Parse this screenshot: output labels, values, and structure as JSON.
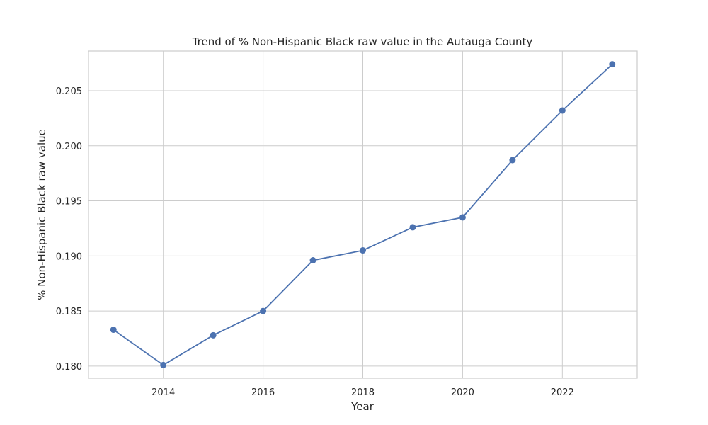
{
  "chart_data": {
    "type": "line",
    "title": "Trend of % Non-Hispanic Black raw value in the Autauga County",
    "xlabel": "Year",
    "ylabel": "% Non-Hispanic Black raw value",
    "x": [
      2013,
      2014,
      2015,
      2016,
      2017,
      2018,
      2019,
      2020,
      2021,
      2022,
      2023
    ],
    "series": [
      {
        "values": [
          0.1833,
          0.1801,
          0.1828,
          0.185,
          0.1896,
          0.1905,
          0.1926,
          0.1935,
          0.1987,
          0.2032,
          0.2074
        ],
        "color": "#4c72b0",
        "marker": "circle"
      }
    ],
    "xlim": [
      2012.5,
      2023.5
    ],
    "ylim": [
      0.1789,
      0.2086
    ],
    "xticks": [
      2014,
      2016,
      2018,
      2020,
      2022
    ],
    "xtick_labels": [
      "2014",
      "2016",
      "2018",
      "2020",
      "2022"
    ],
    "yticks": [
      0.18,
      0.185,
      0.19,
      0.195,
      0.2,
      0.205
    ],
    "ytick_labels": [
      "0.180",
      "0.185",
      "0.190",
      "0.195",
      "0.200",
      "0.205"
    ],
    "grid": true,
    "legend": "none"
  }
}
